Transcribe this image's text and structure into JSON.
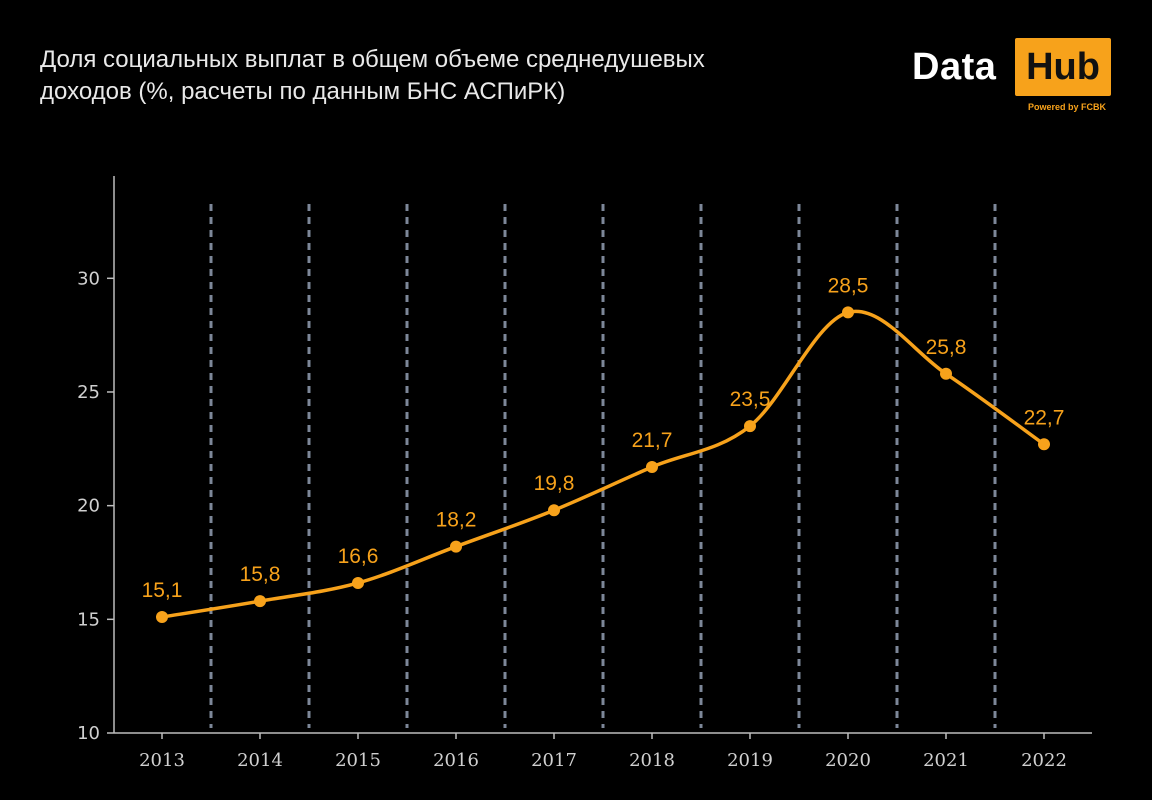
{
  "header": {
    "title_line1": "Доля социальных выплат в общем объеме среднедушевых",
    "title_line2": "доходов (%, расчеты по данным БНС АСПиРК)"
  },
  "logo": {
    "data": "Data",
    "hub": "Hub",
    "powered": "Powered by FCBK"
  },
  "colors": {
    "line": "#f7a21b",
    "label": "#f7a21b",
    "axis": "#bdbdbd",
    "grid": "#7d8799",
    "background": "#000000"
  },
  "chart_data": {
    "type": "line",
    "title": "Доля социальных выплат в общем объеме среднедушевых доходов (%, расчеты по данным БНС АСПиРК)",
    "categories": [
      "2013",
      "2014",
      "2015",
      "2016",
      "2017",
      "2018",
      "2019",
      "2020",
      "2021",
      "2022"
    ],
    "values": [
      15.1,
      15.8,
      16.6,
      18.2,
      19.8,
      21.7,
      23.5,
      28.5,
      25.8,
      22.7
    ],
    "data_labels": [
      "15,1",
      "15,8",
      "16,6",
      "18,2",
      "19,8",
      "21,7",
      "23,5",
      "28,5",
      "25,8",
      "22,7"
    ],
    "yticks": [
      10,
      15,
      20,
      25,
      30
    ],
    "ylim": [
      10,
      34.5
    ],
    "xlabel": "",
    "ylabel": "",
    "grid": "vertical dashed separators between categories",
    "legend": "none"
  }
}
